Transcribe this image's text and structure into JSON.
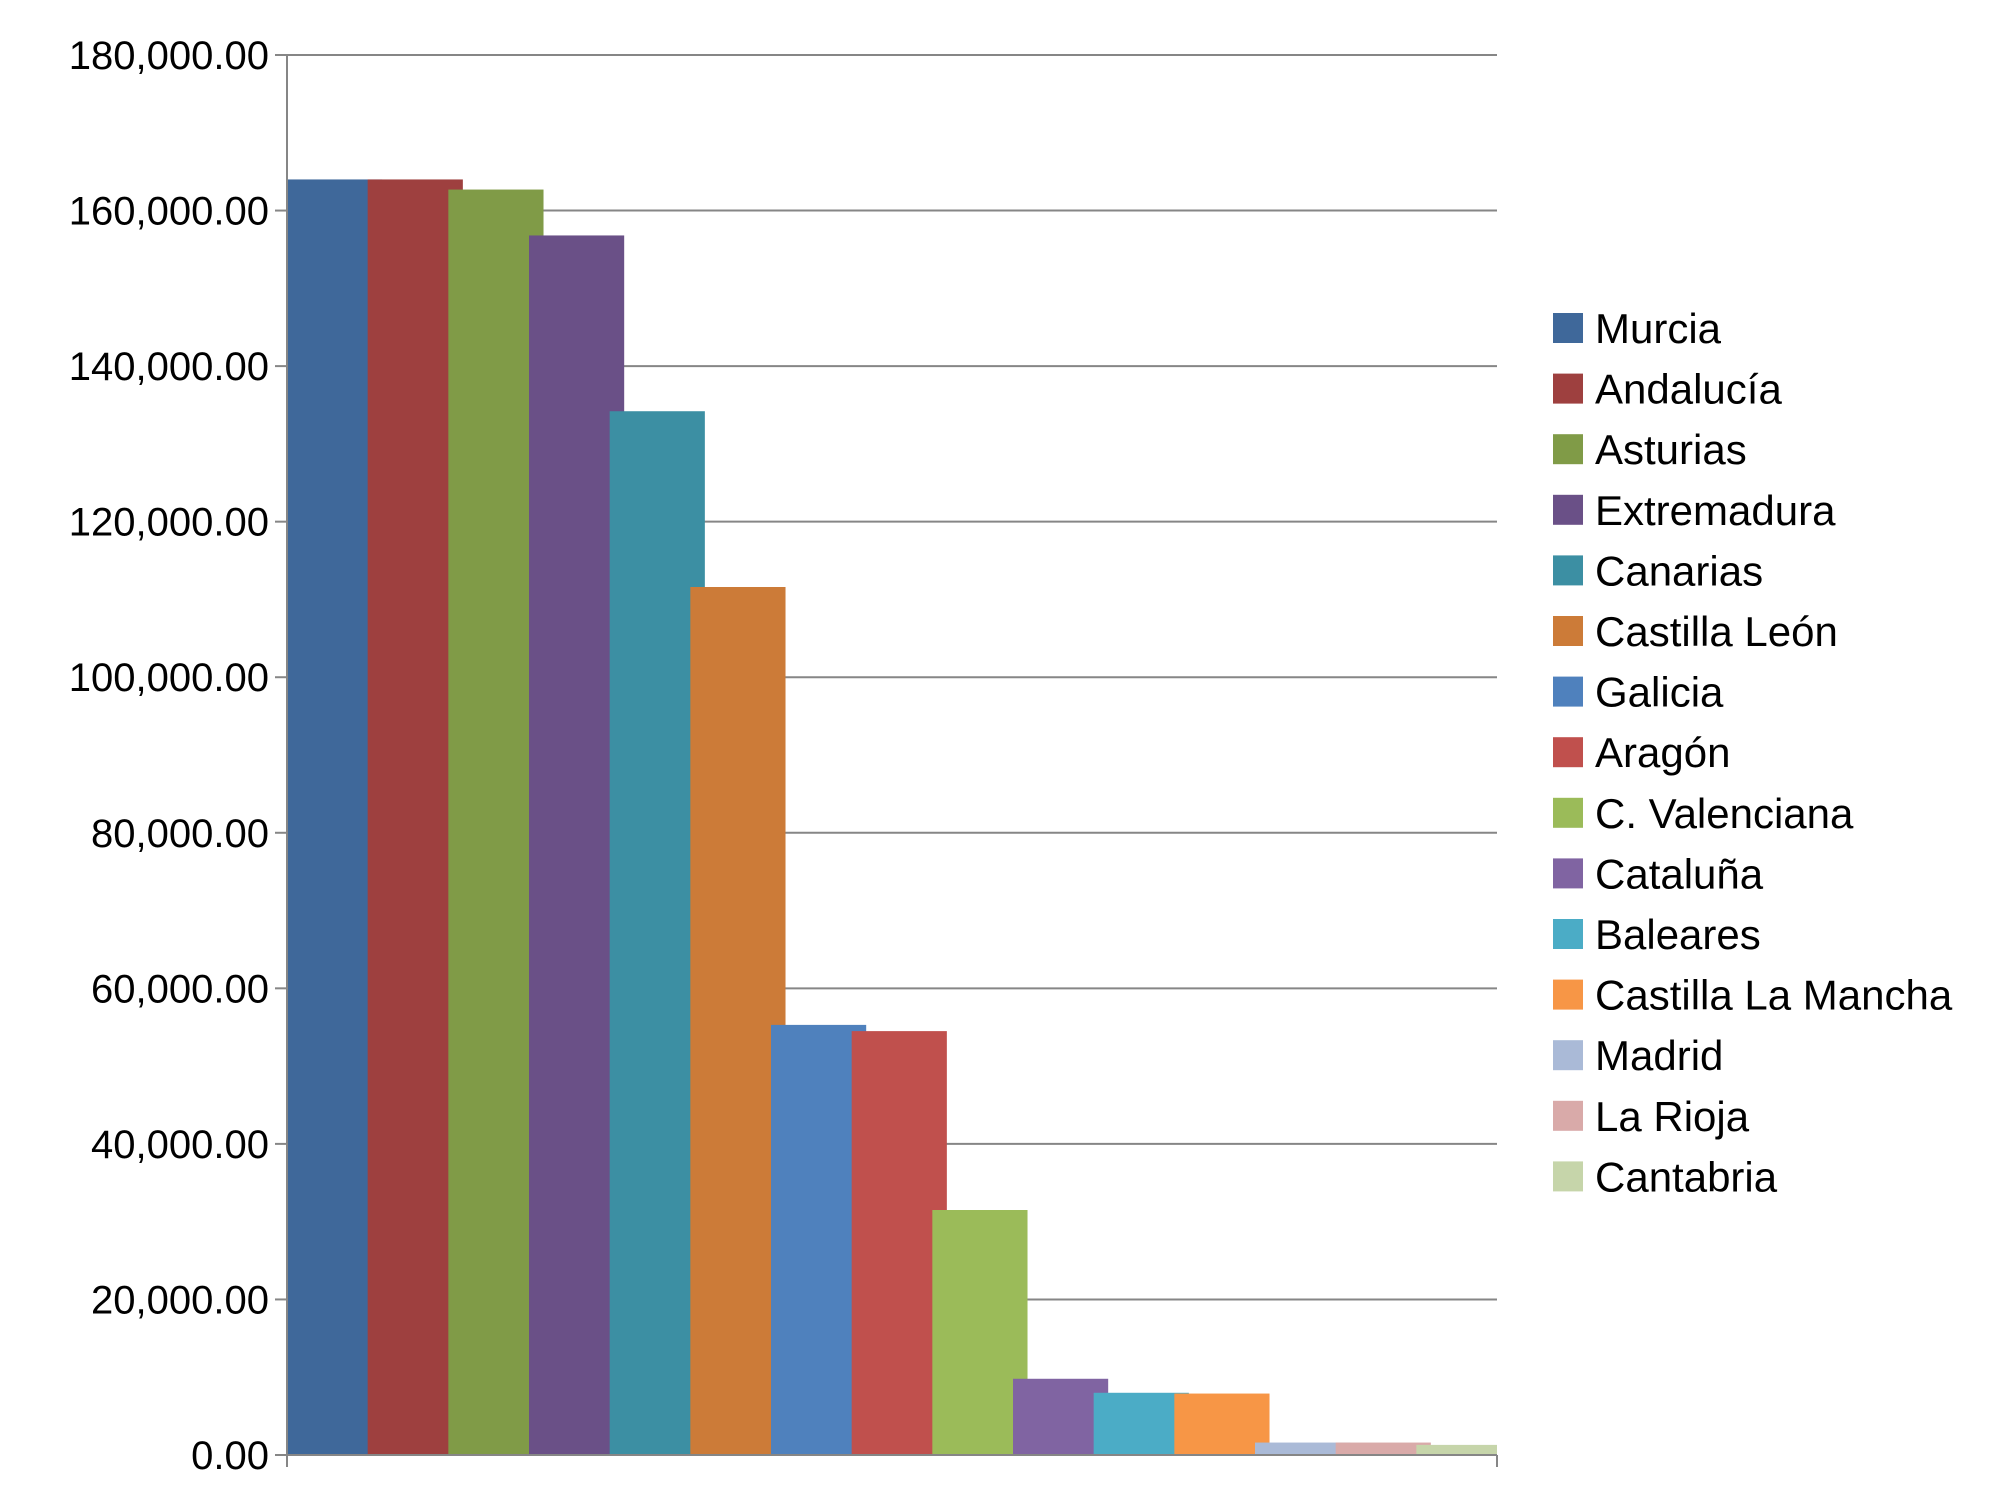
{
  "chart_data": {
    "type": "bar",
    "title": "",
    "xlabel": "",
    "ylabel": "",
    "ylim": [
      0,
      180000
    ],
    "yticks": [
      0,
      20000,
      40000,
      60000,
      80000,
      100000,
      120000,
      140000,
      160000,
      180000
    ],
    "ytick_labels": [
      "0.00",
      "20,000.00",
      "40,000.00",
      "60,000.00",
      "80,000.00",
      "100,000.00",
      "120,000.00",
      "140,000.00",
      "160,000.00",
      "180,000.00"
    ],
    "grid": true,
    "legend_position": "right",
    "series": [
      {
        "name": "Murcia",
        "value": 164000,
        "color": "#3F689A"
      },
      {
        "name": "Andalucía",
        "value": 164000,
        "color": "#9E403F"
      },
      {
        "name": "Asturias",
        "value": 162700,
        "color": "#809B47"
      },
      {
        "name": "Extremadura",
        "value": 156800,
        "color": "#6A5087"
      },
      {
        "name": "Canarias",
        "value": 134200,
        "color": "#3C8FA3"
      },
      {
        "name": "Castilla León",
        "value": 111600,
        "color": "#CC7B38"
      },
      {
        "name": "Galicia",
        "value": 55300,
        "color": "#4F81BD"
      },
      {
        "name": "Aragón",
        "value": 54500,
        "color": "#C0504D"
      },
      {
        "name": "C. Valenciana",
        "value": 31500,
        "color": "#9BBB59"
      },
      {
        "name": "Cataluña",
        "value": 9800,
        "color": "#8064A2"
      },
      {
        "name": "Baleares",
        "value": 8000,
        "color": "#4BACC6"
      },
      {
        "name": "Castilla La Mancha",
        "value": 7900,
        "color": "#F79646"
      },
      {
        "name": "Madrid",
        "value": 1600,
        "color": "#AABAD7"
      },
      {
        "name": "La Rioja",
        "value": 1600,
        "color": "#D9AAA9"
      },
      {
        "name": "Cantabria",
        "value": 1300,
        "color": "#C6D5AA"
      }
    ]
  }
}
